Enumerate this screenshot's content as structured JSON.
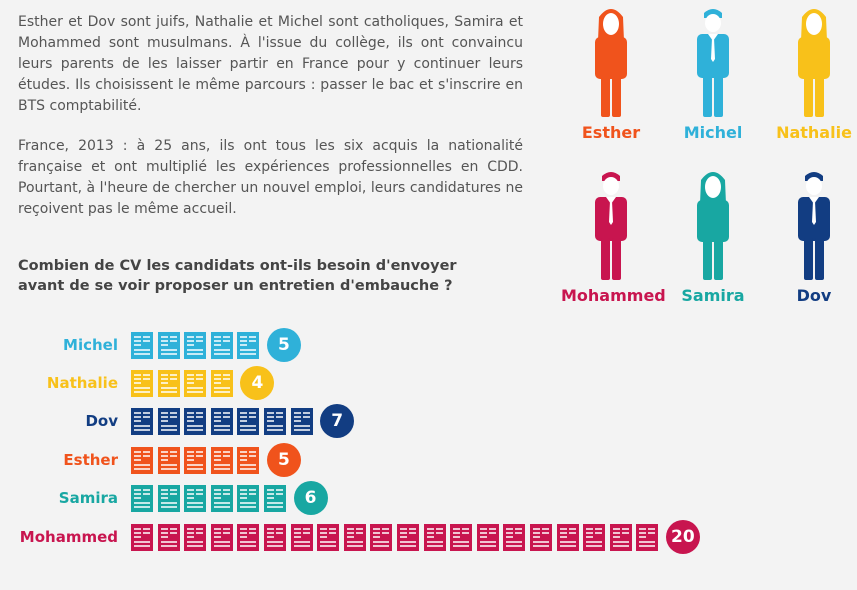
{
  "intro": {
    "paragraph1": "Esther et Dov sont juifs, Nathalie et Michel sont catholiques, Samira et Mohammed sont musulmans. À l'issue du collège, ils ont convaincu leurs parents de les laisser partir en France pour y continuer leurs études. Ils choisissent le même parcours : passer le bac et s'inscrire en BTS comptabilité.",
    "paragraph2": "France, 2013 : à 25 ans, ils ont tous les six acquis la nationalité française et ont multiplié les expériences professionnelles en CDD. Pourtant, à l'heure de chercher un nouvel emploi, leurs candidatures ne reçoivent pas le même accueil."
  },
  "figures": [
    {
      "name": "Esther",
      "gender": "female",
      "color": "#f0531c"
    },
    {
      "name": "Michel",
      "gender": "male",
      "color": "#2fb1d9"
    },
    {
      "name": "Nathalie",
      "gender": "female",
      "color": "#f8c11a"
    },
    {
      "name": "Mohammed",
      "gender": "male",
      "color": "#c8154f"
    },
    {
      "name": "Samira",
      "gender": "female",
      "color": "#18a7a2"
    },
    {
      "name": "Dov",
      "gender": "male",
      "color": "#123d82"
    }
  ],
  "chart_data": {
    "type": "bar",
    "title": "Combien de CV les candidats ont-ils besoin d'envoyer avant de se voir proposer un entretien d'embauche ?",
    "unit_icon": "cv-document-icon",
    "categories": [
      "Michel",
      "Nathalie",
      "Dov",
      "Esther",
      "Samira",
      "Mohammed"
    ],
    "values": [
      5,
      4,
      7,
      5,
      6,
      20
    ],
    "colors": [
      "#2fb1d9",
      "#f8c11a",
      "#123d82",
      "#f0531c",
      "#18a7a2",
      "#c8154f"
    ]
  }
}
